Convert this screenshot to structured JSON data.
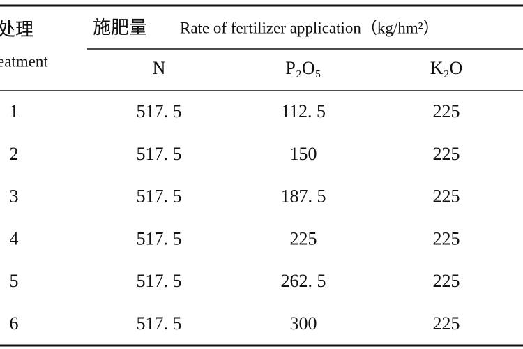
{
  "table": {
    "header": {
      "treatment_cn": "处理",
      "treatment_en": "eatment",
      "rate_cn": "施肥量",
      "rate_en": "Rate of fertilizer application（kg/hm²）",
      "columns": [
        "N",
        "P₂O₅",
        "K₂O"
      ]
    },
    "rows": [
      [
        "1",
        "517. 5",
        "112. 5",
        "225"
      ],
      [
        "2",
        "517. 5",
        "150",
        "225"
      ],
      [
        "3",
        "517. 5",
        "187. 5",
        "225"
      ],
      [
        "4",
        "517. 5",
        "225",
        "225"
      ],
      [
        "5",
        "517. 5",
        "262. 5",
        "225"
      ],
      [
        "6",
        "517. 5",
        "300",
        "225"
      ]
    ]
  }
}
